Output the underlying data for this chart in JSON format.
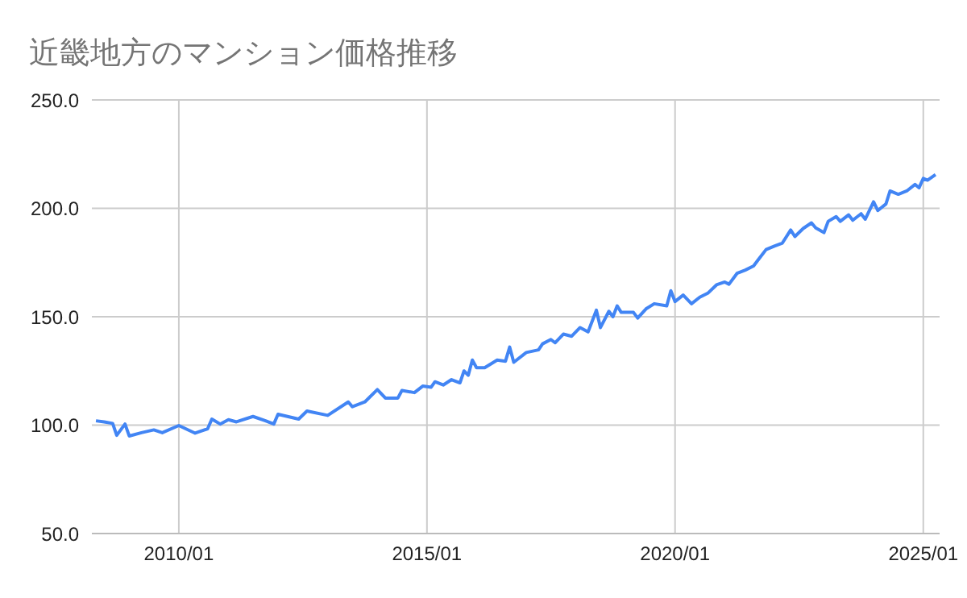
{
  "chart_data": {
    "type": "line",
    "title": "近畿地方のマンション価格推移",
    "x": [
      "2008-05",
      "2008-07",
      "2008-09",
      "2008-10",
      "2008-12",
      "2009-01",
      "2009-04",
      "2009-07",
      "2009-09",
      "2010-01",
      "2010-05",
      "2010-08",
      "2010-09",
      "2010-11",
      "2011-01",
      "2011-03",
      "2011-07",
      "2011-10",
      "2011-12",
      "2012-01",
      "2012-06",
      "2012-08",
      "2013-01",
      "2013-06",
      "2013-07",
      "2013-10",
      "2014-01",
      "2014-03",
      "2014-06",
      "2014-07",
      "2014-10",
      "2014-12",
      "2015-02",
      "2015-03",
      "2015-05",
      "2015-07",
      "2015-09",
      "2015-10",
      "2015-11",
      "2015-12",
      "2016-01",
      "2016-03",
      "2016-06",
      "2016-08",
      "2016-09",
      "2016-10",
      "2017-01",
      "2017-04",
      "2017-05",
      "2017-07",
      "2017-08",
      "2017-10",
      "2017-12",
      "2018-02",
      "2018-04",
      "2018-06",
      "2018-07",
      "2018-09",
      "2018-10",
      "2018-11",
      "2018-12",
      "2019-03",
      "2019-04",
      "2019-06",
      "2019-08",
      "2019-11",
      "2019-12",
      "2020-01",
      "2020-03",
      "2020-05",
      "2020-07",
      "2020-09",
      "2020-11",
      "2021-01",
      "2021-02",
      "2021-04",
      "2021-06",
      "2021-08",
      "2021-09",
      "2021-11",
      "2022-01",
      "2022-03",
      "2022-05",
      "2022-06",
      "2022-08",
      "2022-10",
      "2022-11",
      "2023-01",
      "2023-02",
      "2023-04",
      "2023-05",
      "2023-07",
      "2023-08",
      "2023-10",
      "2023-11",
      "2024-01",
      "2024-02",
      "2024-04",
      "2024-05",
      "2024-07",
      "2024-09",
      "2024-11",
      "2024-12",
      "2025-01",
      "2025-02",
      "2025-04"
    ],
    "series": [
      {
        "color": "#4285f4",
        "values": [
          102,
          101.5,
          100.8,
          95.3,
          100.5,
          95,
          96.5,
          97.8,
          96.5,
          99.8,
          96.3,
          98.3,
          102.8,
          100.5,
          102.5,
          101.5,
          104,
          102,
          100.5,
          105,
          102.8,
          106.5,
          104.5,
          110.7,
          108.5,
          110.7,
          116.4,
          112.5,
          112.5,
          116,
          115,
          118,
          117.5,
          120,
          118.5,
          121,
          119.5,
          125,
          123,
          130,
          126.5,
          126.5,
          130,
          129.5,
          136,
          129,
          133.5,
          134.7,
          137.5,
          139.5,
          138,
          142,
          141,
          145,
          143,
          153,
          145,
          152.5,
          150,
          155,
          152,
          152,
          149.4,
          153.6,
          156,
          155,
          162,
          157,
          160,
          156,
          159,
          161,
          164.7,
          166,
          165,
          170,
          171.5,
          173.4,
          176,
          181,
          182.6,
          184,
          190,
          187,
          190.7,
          193.3,
          191,
          188.8,
          194,
          196.2,
          194,
          197,
          194.5,
          197.5,
          195,
          203,
          199,
          202,
          208,
          206.5,
          208,
          211,
          209.5,
          213.8,
          213,
          215.6
        ]
      }
    ],
    "xlim": [
      "2008-04",
      "2025-05"
    ],
    "xticks": [
      {
        "value": "2010-01",
        "label": "2010/01"
      },
      {
        "value": "2015-01",
        "label": "2015/01"
      },
      {
        "value": "2020-01",
        "label": "2020/01"
      },
      {
        "value": "2025-01",
        "label": "2025/01"
      }
    ],
    "ylim": [
      50,
      250
    ],
    "yticks": [
      {
        "value": 50,
        "label": "50.0"
      },
      {
        "value": 100,
        "label": "100.0"
      },
      {
        "value": 150,
        "label": "150.0"
      },
      {
        "value": 200,
        "label": "200.0"
      },
      {
        "value": 250,
        "label": "250.0"
      }
    ],
    "grid": true,
    "marker": "none",
    "line_style": "solid"
  }
}
